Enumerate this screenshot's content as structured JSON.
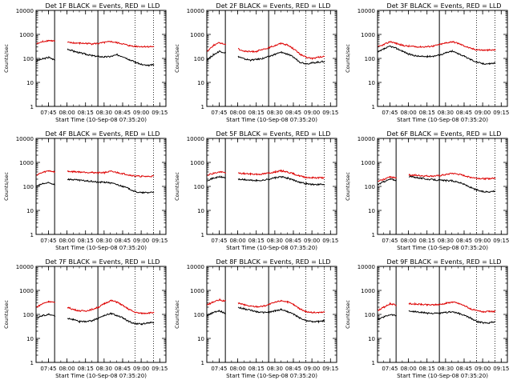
{
  "chart_data": [
    {
      "type": "line",
      "title": "Det 1F BLACK = Events, RED = LLD",
      "panel_index": 1,
      "xlabel": "Start Time (10-Sep-08 07:35:20)",
      "ylabel": "Counts/sec",
      "x_ticks": [
        "07:45",
        "08:00",
        "08:15",
        "08:30",
        "08:45",
        "09:00",
        "09:15"
      ],
      "y_ticks": [
        "1",
        "10",
        "100",
        "1000",
        "10000"
      ],
      "ylim": [
        1,
        10000
      ],
      "log_y": true,
      "x_minutes": [
        0,
        5,
        10,
        15,
        20,
        25,
        30,
        35,
        40,
        45,
        50,
        55,
        60,
        65,
        70,
        75,
        80,
        85,
        90,
        95
      ],
      "series": [
        {
          "name": "Events",
          "color": "#000000",
          "values": [
            80,
            95,
            110,
            85,
            null,
            250,
            200,
            170,
            150,
            130,
            120,
            115,
            120,
            140,
            120,
            90,
            70,
            55,
            50,
            55
          ]
        },
        {
          "name": "LLD",
          "color": "#dd0000",
          "values": [
            400,
            500,
            560,
            520,
            null,
            460,
            440,
            430,
            420,
            410,
            420,
            460,
            500,
            450,
            400,
            340,
            320,
            310,
            310,
            310
          ]
        }
      ],
      "vlines_solid": [
        "07:50",
        "08:25"
      ],
      "vlines_dotted": [
        "08:55",
        "09:10"
      ]
    },
    {
      "type": "line",
      "title": "Det 2F BLACK = Events, RED = LLD",
      "panel_index": 2,
      "xlabel": "Start Time (10-Sep-08 07:35:20)",
      "ylabel": "Counts/sec",
      "x_ticks": [
        "07:45",
        "08:00",
        "08:15",
        "08:30",
        "08:45",
        "09:00",
        "09:15"
      ],
      "y_ticks": [
        "1",
        "10",
        "100",
        "1000",
        "10000"
      ],
      "ylim": [
        1,
        10000
      ],
      "log_y": true,
      "x_minutes": [
        0,
        5,
        10,
        15,
        20,
        25,
        30,
        35,
        40,
        45,
        50,
        55,
        60,
        65,
        70,
        75,
        80,
        85,
        90,
        95
      ],
      "series": [
        {
          "name": "Events",
          "color": "#000000",
          "values": [
            90,
            140,
            200,
            170,
            null,
            120,
            95,
            85,
            90,
            100,
            120,
            150,
            180,
            150,
            110,
            70,
            60,
            65,
            70,
            75
          ]
        },
        {
          "name": "LLD",
          "color": "#dd0000",
          "values": [
            200,
            350,
            450,
            380,
            null,
            250,
            200,
            190,
            200,
            230,
            280,
            350,
            430,
            360,
            250,
            150,
            110,
            100,
            110,
            120
          ]
        }
      ],
      "vlines_solid": [
        "07:50",
        "08:25"
      ],
      "vlines_dotted": [
        "08:55",
        "09:10"
      ]
    },
    {
      "type": "line",
      "title": "Det 3F BLACK = Events, RED = LLD",
      "panel_index": 3,
      "xlabel": "Start Time (10-Sep-08 07:35:20)",
      "ylabel": "Counts/sec",
      "x_ticks": [
        "07:45",
        "08:00",
        "08:15",
        "08:30",
        "08:45",
        "09:00",
        "09:15"
      ],
      "y_ticks": [
        "1",
        "10",
        "100",
        "1000",
        "10000"
      ],
      "ylim": [
        1,
        10000
      ],
      "log_y": true,
      "x_minutes": [
        0,
        5,
        10,
        15,
        20,
        25,
        30,
        35,
        40,
        45,
        50,
        55,
        60,
        65,
        70,
        75,
        80,
        85,
        90,
        95
      ],
      "series": [
        {
          "name": "Events",
          "color": "#000000",
          "values": [
            180,
            250,
            320,
            260,
            200,
            150,
            130,
            120,
            120,
            125,
            140,
            170,
            200,
            160,
            120,
            90,
            70,
            60,
            60,
            65
          ]
        },
        {
          "name": "LLD",
          "color": "#dd0000",
          "values": [
            300,
            380,
            500,
            420,
            350,
            320,
            310,
            300,
            310,
            330,
            380,
            440,
            500,
            420,
            330,
            260,
            230,
            220,
            220,
            225
          ]
        }
      ],
      "vlines_solid": [
        "08:25"
      ],
      "vlines_dotted": [
        "08:55",
        "09:10"
      ]
    },
    {
      "type": "line",
      "title": "Det 4F BLACK = Events, RED = LLD",
      "panel_index": 4,
      "xlabel": "Start Time (10-Sep-08 07:35:20)",
      "ylabel": "Counts/sec",
      "x_ticks": [
        "07:45",
        "08:00",
        "08:15",
        "08:30",
        "08:45",
        "09:00",
        "09:15"
      ],
      "y_ticks": [
        "1",
        "10",
        "100",
        "1000",
        "10000"
      ],
      "ylim": [
        1,
        10000
      ],
      "log_y": true,
      "x_minutes": [
        0,
        5,
        10,
        15,
        20,
        25,
        30,
        35,
        40,
        45,
        50,
        55,
        60,
        65,
        70,
        75,
        80,
        85,
        90,
        95
      ],
      "series": [
        {
          "name": "Events",
          "color": "#000000",
          "values": [
            100,
            130,
            140,
            120,
            null,
            200,
            190,
            180,
            170,
            160,
            150,
            150,
            140,
            120,
            100,
            80,
            60,
            55,
            55,
            60
          ]
        },
        {
          "name": "LLD",
          "color": "#dd0000",
          "values": [
            300,
            380,
            450,
            400,
            null,
            420,
            410,
            400,
            390,
            380,
            370,
            380,
            420,
            380,
            340,
            300,
            270,
            260,
            260,
            270
          ]
        }
      ],
      "vlines_solid": [
        "07:50",
        "08:25"
      ],
      "vlines_dotted": [
        "08:55",
        "09:10"
      ]
    },
    {
      "type": "line",
      "title": "Det 5F BLACK = Events, RED = LLD",
      "panel_index": 5,
      "xlabel": "Start Time (10-Sep-08 07:35:20)",
      "ylabel": "Counts/sec",
      "x_ticks": [
        "07:45",
        "08:00",
        "08:15",
        "08:30",
        "08:45",
        "09:00",
        "09:15"
      ],
      "y_ticks": [
        "1",
        "10",
        "100",
        "1000",
        "10000"
      ],
      "ylim": [
        1,
        10000
      ],
      "log_y": true,
      "x_minutes": [
        0,
        5,
        10,
        15,
        20,
        25,
        30,
        35,
        40,
        45,
        50,
        55,
        60,
        65,
        70,
        75,
        80,
        85,
        90,
        95
      ],
      "series": [
        {
          "name": "Events",
          "color": "#000000",
          "values": [
            180,
            220,
            250,
            230,
            null,
            200,
            190,
            180,
            175,
            180,
            200,
            230,
            250,
            220,
            180,
            150,
            130,
            120,
            120,
            120
          ]
        },
        {
          "name": "LLD",
          "color": "#dd0000",
          "values": [
            300,
            350,
            400,
            370,
            null,
            350,
            340,
            330,
            320,
            330,
            360,
            400,
            450,
            400,
            330,
            270,
            240,
            230,
            230,
            230
          ]
        }
      ],
      "vlines_solid": [
        "07:50",
        "08:25"
      ],
      "vlines_dotted": [
        "08:55",
        "09:10"
      ]
    },
    {
      "type": "line",
      "title": "Det 6F BLACK = Events, RED = LLD",
      "panel_index": 6,
      "xlabel": "Start Time (10-Sep-08 07:35:20)",
      "ylabel": "Counts/sec",
      "x_ticks": [
        "07:45",
        "08:00",
        "08:15",
        "08:30",
        "08:45",
        "09:00",
        "09:15"
      ],
      "y_ticks": [
        "1",
        "10",
        "100",
        "1000",
        "10000"
      ],
      "ylim": [
        1,
        10000
      ],
      "log_y": true,
      "x_minutes": [
        0,
        5,
        10,
        15,
        20,
        25,
        30,
        35,
        40,
        45,
        50,
        55,
        60,
        65,
        70,
        75,
        80,
        85,
        90,
        95
      ],
      "series": [
        {
          "name": "Events",
          "color": "#000000",
          "values": [
            120,
            160,
            200,
            180,
            null,
            260,
            240,
            220,
            200,
            190,
            180,
            175,
            170,
            150,
            120,
            90,
            70,
            60,
            60,
            65
          ]
        },
        {
          "name": "LLD",
          "color": "#dd0000",
          "values": [
            160,
            200,
            250,
            230,
            null,
            300,
            290,
            280,
            270,
            270,
            280,
            310,
            350,
            320,
            280,
            240,
            220,
            210,
            210,
            220
          ]
        }
      ],
      "vlines_solid": [
        "07:50",
        "08:25"
      ],
      "vlines_dotted": [
        "08:55",
        "09:10"
      ]
    },
    {
      "type": "line",
      "title": "Det 7F BLACK = Events, RED = LLD",
      "panel_index": 7,
      "xlabel": "Start Time (10-Sep-08 07:35:20)",
      "ylabel": "Counts/sec",
      "x_ticks": [
        "07:45",
        "08:00",
        "08:15",
        "08:30",
        "08:45",
        "09:00",
        "09:15"
      ],
      "y_ticks": [
        "1",
        "10",
        "100",
        "1000",
        "10000"
      ],
      "ylim": [
        1,
        10000
      ],
      "log_y": true,
      "x_minutes": [
        0,
        5,
        10,
        15,
        20,
        25,
        30,
        35,
        40,
        45,
        50,
        55,
        60,
        65,
        70,
        75,
        80,
        85,
        90,
        95
      ],
      "series": [
        {
          "name": "Events",
          "color": "#000000",
          "values": [
            70,
            90,
            100,
            85,
            null,
            70,
            60,
            50,
            50,
            55,
            70,
            90,
            110,
            90,
            70,
            50,
            40,
            40,
            45,
            45
          ]
        },
        {
          "name": "LLD",
          "color": "#dd0000",
          "values": [
            200,
            280,
            350,
            300,
            null,
            200,
            160,
            140,
            140,
            160,
            200,
            280,
            380,
            330,
            230,
            160,
            120,
            110,
            115,
            120
          ]
        }
      ],
      "vlines_solid": [
        "07:50",
        "08:25"
      ],
      "vlines_dotted": [
        "08:55",
        "09:10"
      ]
    },
    {
      "type": "line",
      "title": "Det 8F BLACK = Events, RED = LLD",
      "panel_index": 8,
      "xlabel": "Start Time (10-Sep-08 07:35:20)",
      "ylabel": "Counts/sec",
      "x_ticks": [
        "07:45",
        "08:00",
        "08:15",
        "08:30",
        "08:45",
        "09:00",
        "09:15"
      ],
      "y_ticks": [
        "1",
        "10",
        "100",
        "1000",
        "10000"
      ],
      "ylim": [
        1,
        10000
      ],
      "log_y": true,
      "x_minutes": [
        0,
        5,
        10,
        15,
        20,
        25,
        30,
        35,
        40,
        45,
        50,
        55,
        60,
        65,
        70,
        75,
        80,
        85,
        90,
        95
      ],
      "series": [
        {
          "name": "Events",
          "color": "#000000",
          "values": [
            90,
            120,
            140,
            110,
            null,
            200,
            170,
            150,
            130,
            120,
            125,
            140,
            160,
            130,
            100,
            70,
            55,
            50,
            50,
            55
          ]
        },
        {
          "name": "LLD",
          "color": "#dd0000",
          "values": [
            250,
            330,
            400,
            350,
            null,
            300,
            250,
            220,
            210,
            220,
            260,
            320,
            380,
            330,
            250,
            170,
            130,
            120,
            120,
            125
          ]
        }
      ],
      "vlines_solid": [
        "07:50",
        "08:25"
      ],
      "vlines_dotted": [
        "08:55",
        "09:10"
      ]
    },
    {
      "type": "line",
      "title": "Det 9F BLACK = Events, RED = LLD",
      "panel_index": 9,
      "xlabel": "Start Time (10-Sep-08 07:35:20)",
      "ylabel": "Counts/sec",
      "x_ticks": [
        "07:45",
        "08:00",
        "08:15",
        "08:30",
        "08:45",
        "09:00",
        "09:15"
      ],
      "y_ticks": [
        "1",
        "10",
        "100",
        "1000",
        "10000"
      ],
      "ylim": [
        1,
        10000
      ],
      "log_y": true,
      "x_minutes": [
        0,
        5,
        10,
        15,
        20,
        25,
        30,
        35,
        40,
        45,
        50,
        55,
        60,
        65,
        70,
        75,
        80,
        85,
        90,
        95
      ],
      "series": [
        {
          "name": "Events",
          "color": "#000000",
          "values": [
            60,
            80,
            100,
            90,
            null,
            140,
            130,
            120,
            115,
            110,
            110,
            120,
            130,
            110,
            90,
            70,
            50,
            45,
            45,
            50
          ]
        },
        {
          "name": "LLD",
          "color": "#dd0000",
          "values": [
            150,
            200,
            280,
            240,
            null,
            280,
            270,
            260,
            250,
            250,
            260,
            290,
            330,
            290,
            230,
            170,
            140,
            130,
            130,
            135
          ]
        }
      ],
      "vlines_solid": [
        "07:50",
        "08:25"
      ],
      "vlines_dotted": [
        "08:55",
        "09:10"
      ]
    }
  ]
}
